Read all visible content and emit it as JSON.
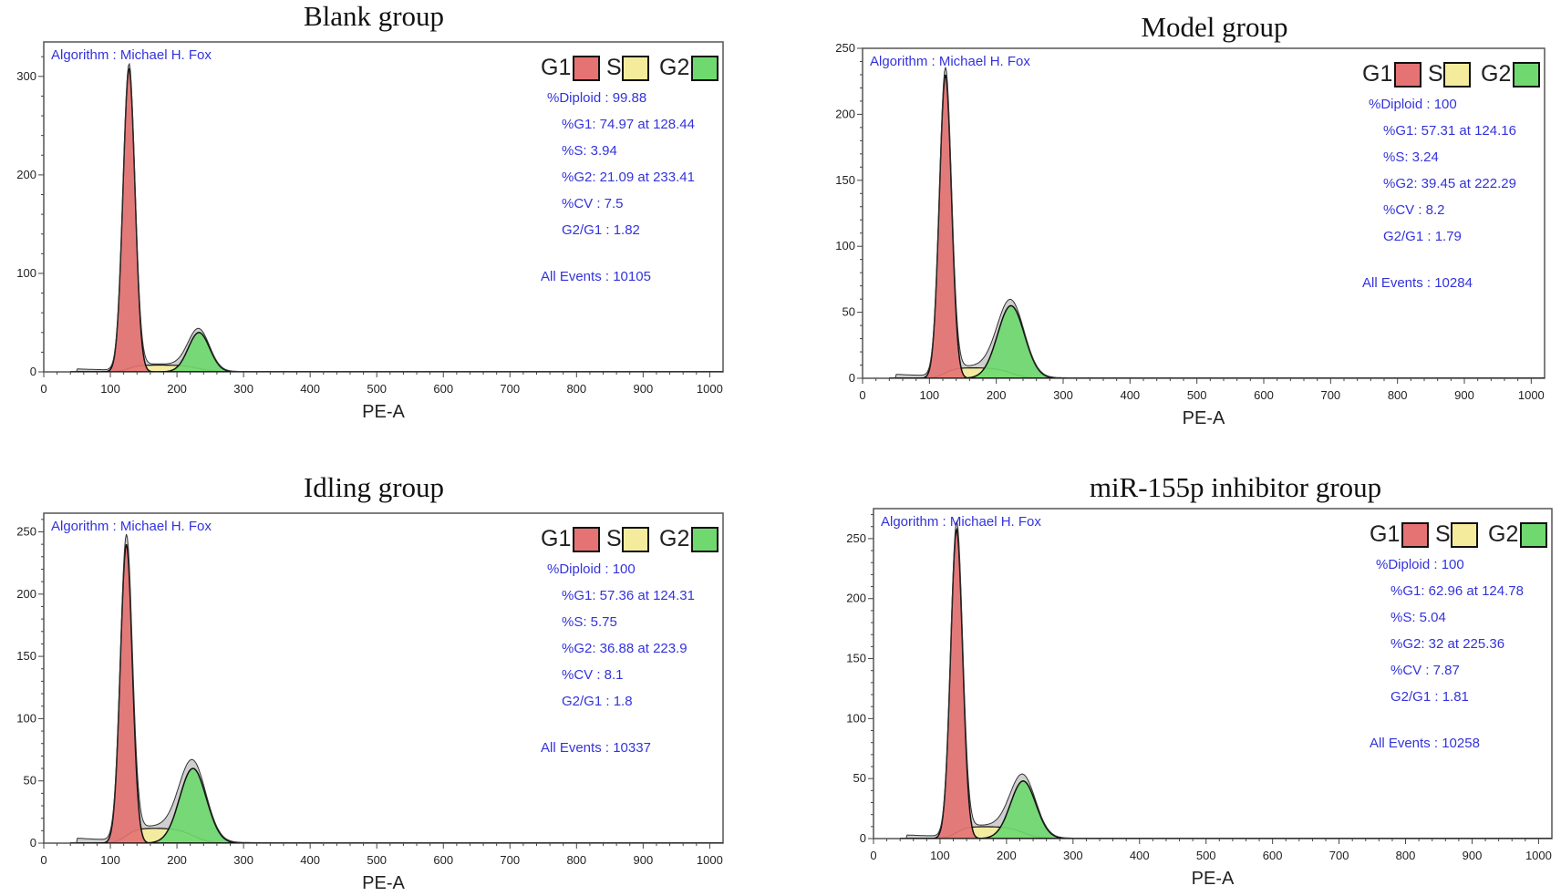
{
  "chart_data": [
    {
      "type": "area",
      "title": "Blank group",
      "xlabel": "PE-A",
      "ylabel": "",
      "algorithm": "Algorithm : Michael H. Fox",
      "legend": [
        "G1",
        "S",
        "G2"
      ],
      "stats": [
        "%Diploid : 99.88",
        "%G1: 74.97 at 128.44",
        "%S: 3.94",
        "%G2: 21.09 at 233.41",
        "%CV : 7.5",
        "G2/G1 : 1.82"
      ],
      "all_events": "All Events : 10105",
      "xlim": [
        0,
        1020
      ],
      "ylim": [
        0,
        335
      ],
      "xticks": [
        0,
        100,
        200,
        300,
        400,
        500,
        600,
        700,
        800,
        900,
        1000
      ],
      "yticks": [
        0,
        100,
        200,
        300
      ],
      "g1": {
        "center": 128,
        "sd": 9,
        "height": 308
      },
      "s": {
        "start": 128,
        "end": 233,
        "height": 7
      },
      "g2": {
        "center": 233,
        "sd": 16,
        "height": 40
      },
      "debris": 3
    },
    {
      "type": "area",
      "title": "Model group",
      "xlabel": "PE-A",
      "ylabel": "",
      "algorithm": "Algorithm : Michael H. Fox",
      "legend": [
        "G1",
        "S",
        "G2"
      ],
      "stats": [
        "%Diploid : 100",
        "%G1: 57.31 at 124.16",
        "%S: 3.24",
        "%G2: 39.45 at 222.29",
        "%CV : 8.2",
        "G2/G1 : 1.79"
      ],
      "all_events": "All Events : 10284",
      "xlim": [
        0,
        1020
      ],
      "ylim": [
        0,
        250
      ],
      "xticks": [
        0,
        100,
        200,
        300,
        400,
        500,
        600,
        700,
        800,
        900,
        1000
      ],
      "yticks": [
        0,
        50,
        100,
        150,
        200,
        250
      ],
      "g1": {
        "center": 124,
        "sd": 9,
        "height": 230
      },
      "s": {
        "start": 124,
        "end": 222,
        "height": 8
      },
      "g2": {
        "center": 222,
        "sd": 20,
        "height": 55
      },
      "debris": 3
    },
    {
      "type": "area",
      "title": "Idling group",
      "xlabel": "PE-A",
      "ylabel": "",
      "algorithm": "Algorithm : Michael H. Fox",
      "legend": [
        "G1",
        "S",
        "G2"
      ],
      "stats": [
        "%Diploid : 100",
        "%G1: 57.36 at 124.31",
        "%S: 5.75",
        "%G2: 36.88 at 223.9",
        "%CV : 8.1",
        "G2/G1 : 1.8"
      ],
      "all_events": "All Events : 10337",
      "xlim": [
        0,
        1020
      ],
      "ylim": [
        0,
        265
      ],
      "xticks": [
        0,
        100,
        200,
        300,
        400,
        500,
        600,
        700,
        800,
        900,
        1000
      ],
      "yticks": [
        0,
        50,
        100,
        150,
        200,
        250
      ],
      "g1": {
        "center": 124,
        "sd": 9,
        "height": 240
      },
      "s": {
        "start": 124,
        "end": 224,
        "height": 12
      },
      "g2": {
        "center": 224,
        "sd": 20,
        "height": 60
      },
      "debris": 4
    },
    {
      "type": "area",
      "title": "miR-155p inhibitor group",
      "xlabel": "PE-A",
      "ylabel": "",
      "algorithm": "Algorithm : Michael H. Fox",
      "legend": [
        "G1",
        "S",
        "G2"
      ],
      "stats": [
        "%Diploid : 100",
        "%G1: 62.96 at 124.78",
        "%S: 5.04",
        "%G2: 32 at 225.36",
        "%CV : 7.87",
        "G2/G1 : 1.81"
      ],
      "all_events": "All Events : 10258",
      "xlim": [
        0,
        1020
      ],
      "ylim": [
        0,
        275
      ],
      "xticks": [
        0,
        100,
        200,
        300,
        400,
        500,
        600,
        700,
        800,
        900,
        1000
      ],
      "yticks": [
        0,
        50,
        100,
        150,
        200,
        250
      ],
      "g1": {
        "center": 125,
        "sd": 9,
        "height": 258
      },
      "s": {
        "start": 125,
        "end": 225,
        "height": 10
      },
      "g2": {
        "center": 225,
        "sd": 19,
        "height": 48
      },
      "debris": 3
    }
  ],
  "colors": {
    "g1": "#e57373",
    "s": "#f4ec9c",
    "g2": "#6fd96f",
    "envelope": "#cfcfcf",
    "outline": "#111111",
    "text_blue": "#3333dd"
  }
}
